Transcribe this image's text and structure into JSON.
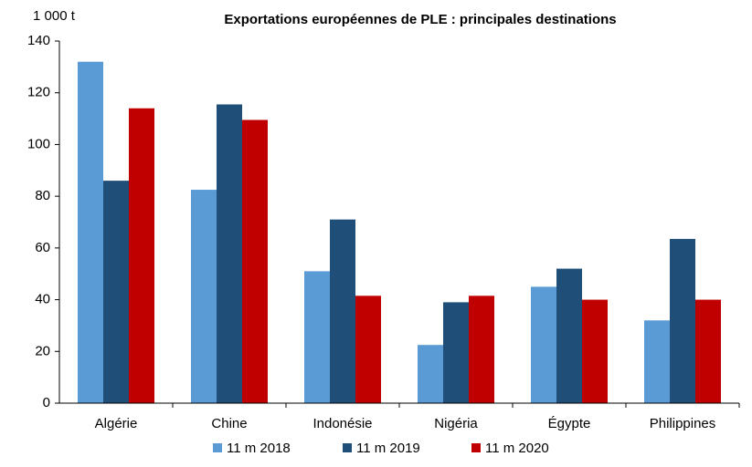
{
  "chart_data": {
    "type": "bar",
    "title": "Exportations européennes de PLE : principales destinations",
    "y_axis_label": "1 000 t",
    "categories": [
      "Algérie",
      "Chine",
      "Indonésie",
      "Nigéria",
      "Égypte",
      "Philippines"
    ],
    "series": [
      {
        "name": "11 m 2018",
        "color": "#5b9bd5",
        "values": [
          132,
          82.5,
          51,
          22.5,
          45,
          32
        ]
      },
      {
        "name": "11 m 2019",
        "color": "#1f4e79",
        "values": [
          86,
          115.5,
          71,
          39,
          52,
          63.5
        ]
      },
      {
        "name": "11 m 2020",
        "color": "#c00000",
        "values": [
          114,
          109.5,
          41.5,
          41.5,
          40,
          40
        ]
      }
    ],
    "ylim": [
      0,
      140
    ],
    "yticks": [
      0,
      20,
      40,
      60,
      80,
      100,
      120,
      140
    ],
    "grid": false,
    "legend": "bottom"
  }
}
